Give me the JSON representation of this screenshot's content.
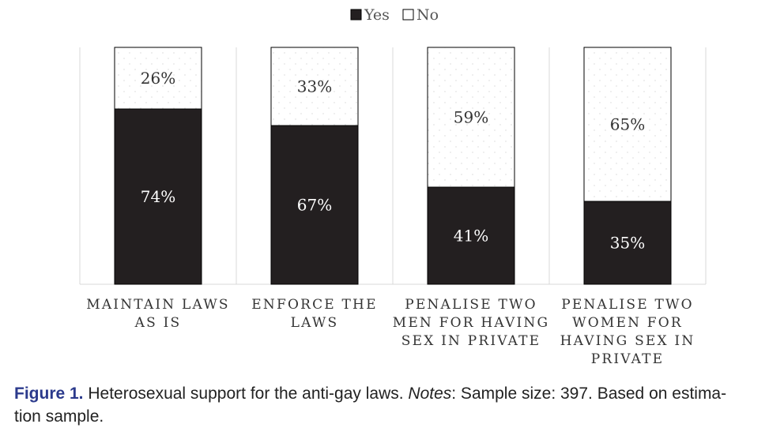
{
  "chart_data": {
    "type": "bar",
    "stacked": true,
    "percent": true,
    "legend": {
      "position": "top-center",
      "items": [
        {
          "name": "Yes",
          "color": "#231f20"
        },
        {
          "name": "No",
          "color": "#ffffff"
        }
      ]
    },
    "categories": [
      [
        "MAINTAIN LAWS",
        "AS IS"
      ],
      [
        "ENFORCE THE",
        "LAWS"
      ],
      [
        "PENALISE TWO",
        "MEN FOR HAVING",
        "SEX IN PRIVATE"
      ],
      [
        "PENALISE TWO",
        "WOMEN FOR",
        "HAVING SEX IN",
        "PRIVATE"
      ]
    ],
    "series": [
      {
        "name": "Yes",
        "values": [
          74,
          67,
          41,
          35
        ],
        "labels": [
          "74%",
          "67%",
          "41%",
          "35%"
        ]
      },
      {
        "name": "No",
        "values": [
          26,
          33,
          59,
          65
        ],
        "labels": [
          "26%",
          "33%",
          "59%",
          "65%"
        ]
      }
    ],
    "ylim": [
      0,
      100
    ],
    "xlabel": "",
    "ylabel": ""
  },
  "caption": {
    "figure_label": "Figure 1.",
    "text": " Heterosexual support for the anti-gay laws. ",
    "notes_label": "Notes",
    "notes_text": ": Sample size: 397. Based on estima-\ntion sample."
  }
}
